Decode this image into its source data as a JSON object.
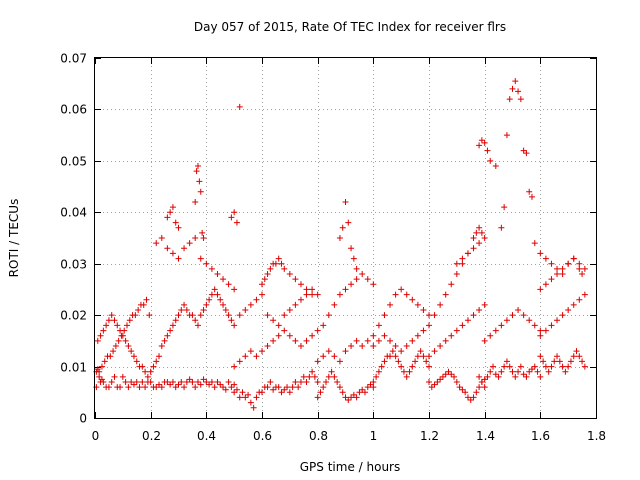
{
  "chart_data": {
    "type": "scatter",
    "title": "Day 057 of 2015, Rate Of TEC Index for receiver flrs",
    "xlabel": "GPS time / hours",
    "ylabel": "ROTI / TECUs",
    "xlim": [
      0,
      1.8
    ],
    "ylim": [
      0,
      0.07
    ],
    "xticks": [
      "0",
      "0.2",
      "0.4",
      "0.6",
      "0.8",
      "1",
      "1.2",
      "1.4",
      "1.6",
      "1.8"
    ],
    "yticks": [
      "0",
      "0.01",
      "0.02",
      "0.03",
      "0.04",
      "0.05",
      "0.06",
      "0.07"
    ],
    "grid": true,
    "marker": "+",
    "color": "#dd0000",
    "series": [
      {
        "x": [
          0.005,
          0.01,
          0.015,
          0.02,
          0.025,
          0.03,
          0.04,
          0.05,
          0.06,
          0.07,
          0.08,
          0.09,
          0.1,
          0.11,
          0.12,
          0.13,
          0.14,
          0.15,
          0.16,
          0.17,
          0.18,
          0.19,
          0.005,
          0.015,
          0.025,
          0.035,
          0.045,
          0.055,
          0.065,
          0.075,
          0.085,
          0.095,
          0.105,
          0.115,
          0.125,
          0.135,
          0.145,
          0.155,
          0.165,
          0.175,
          0.185,
          0.195,
          0.01,
          0.02,
          0.03,
          0.04,
          0.05,
          0.06,
          0.07,
          0.08,
          0.09,
          0.1,
          0.11,
          0.12,
          0.13,
          0.14,
          0.15,
          0.16,
          0.17,
          0.18,
          0.19,
          0.2,
          0.2,
          0.21,
          0.22,
          0.23,
          0.24,
          0.25,
          0.26,
          0.27,
          0.28,
          0.29,
          0.3,
          0.31,
          0.32,
          0.33,
          0.34,
          0.35,
          0.36,
          0.37,
          0.38,
          0.39,
          0.4,
          0.41,
          0.42,
          0.43,
          0.44,
          0.45,
          0.46,
          0.47,
          0.48,
          0.49,
          0.5,
          0.21,
          0.22,
          0.23,
          0.24,
          0.25,
          0.26,
          0.27,
          0.28,
          0.29,
          0.3,
          0.31,
          0.32,
          0.33,
          0.34,
          0.35,
          0.36,
          0.37,
          0.38,
          0.39,
          0.4,
          0.41,
          0.42,
          0.43,
          0.44,
          0.45,
          0.46,
          0.47,
          0.48,
          0.49,
          0.5,
          0.22,
          0.24,
          0.26,
          0.28,
          0.3,
          0.32,
          0.34,
          0.36,
          0.38,
          0.4,
          0.42,
          0.44,
          0.46,
          0.48,
          0.5,
          0.26,
          0.27,
          0.28,
          0.29,
          0.3,
          0.36,
          0.365,
          0.37,
          0.375,
          0.38,
          0.385,
          0.39,
          0.49,
          0.5,
          0.52,
          0.51,
          0.5,
          0.51,
          0.52,
          0.53,
          0.54,
          0.55,
          0.56,
          0.57,
          0.58,
          0.59,
          0.6,
          0.61,
          0.62,
          0.63,
          0.64,
          0.65,
          0.66,
          0.67,
          0.68,
          0.69,
          0.7,
          0.71,
          0.72,
          0.73,
          0.74,
          0.75,
          0.76,
          0.77,
          0.78,
          0.79,
          0.8,
          0.5,
          0.52,
          0.54,
          0.56,
          0.58,
          0.6,
          0.62,
          0.64,
          0.66,
          0.68,
          0.7,
          0.72,
          0.74,
          0.76,
          0.78,
          0.8,
          0.52,
          0.54,
          0.56,
          0.58,
          0.6,
          0.62,
          0.64,
          0.66,
          0.68,
          0.7,
          0.72,
          0.74,
          0.76,
          0.78,
          0.8,
          0.6,
          0.61,
          0.62,
          0.63,
          0.64,
          0.65,
          0.66,
          0.67,
          0.68,
          0.7,
          0.72,
          0.74,
          0.76,
          0.78,
          0.8,
          0.81,
          0.82,
          0.83,
          0.84,
          0.85,
          0.86,
          0.87,
          0.88,
          0.89,
          0.9,
          0.91,
          0.92,
          0.93,
          0.94,
          0.95,
          0.96,
          0.97,
          0.98,
          0.99,
          1.0,
          0.8,
          0.82,
          0.84,
          0.86,
          0.88,
          0.9,
          0.92,
          0.94,
          0.96,
          0.98,
          1.0,
          0.82,
          0.84,
          0.86,
          0.88,
          0.9,
          0.92,
          0.94,
          0.96,
          0.98,
          1.0,
          0.88,
          0.89,
          0.9,
          0.91,
          0.92,
          0.93,
          0.94,
          1.0,
          1.01,
          1.02,
          1.03,
          1.04,
          1.05,
          1.06,
          1.07,
          1.08,
          1.09,
          1.1,
          1.11,
          1.12,
          1.13,
          1.14,
          1.15,
          1.16,
          1.17,
          1.18,
          1.19,
          1.2,
          1.0,
          1.02,
          1.04,
          1.06,
          1.08,
          1.1,
          1.12,
          1.14,
          1.16,
          1.18,
          1.2,
          1.02,
          1.04,
          1.06,
          1.08,
          1.1,
          1.12,
          1.14,
          1.16,
          1.18,
          1.2,
          1.2,
          1.21,
          1.22,
          1.23,
          1.24,
          1.25,
          1.26,
          1.27,
          1.28,
          1.29,
          1.3,
          1.31,
          1.32,
          1.33,
          1.34,
          1.35,
          1.36,
          1.37,
          1.38,
          1.39,
          1.4,
          1.2,
          1.22,
          1.24,
          1.26,
          1.28,
          1.3,
          1.32,
          1.34,
          1.36,
          1.38,
          1.4,
          1.22,
          1.24,
          1.26,
          1.28,
          1.3,
          1.32,
          1.34,
          1.36,
          1.38,
          1.4,
          1.3,
          1.32,
          1.34,
          1.36,
          1.37,
          1.38,
          1.39,
          1.38,
          1.39,
          1.4,
          1.41,
          1.42,
          1.43,
          1.44,
          1.45,
          1.46,
          1.47,
          1.48,
          1.49,
          1.5,
          1.51,
          1.52,
          1.53,
          1.54,
          1.55,
          1.56,
          1.57,
          1.58,
          1.59,
          1.6,
          1.4,
          1.42,
          1.44,
          1.46,
          1.48,
          1.5,
          1.52,
          1.54,
          1.56,
          1.58,
          1.6,
          1.38,
          1.39,
          1.4,
          1.41,
          1.42,
          1.44,
          1.46,
          1.47,
          1.48,
          1.49,
          1.5,
          1.51,
          1.52,
          1.53,
          1.54,
          1.55,
          1.56,
          1.57,
          1.6,
          1.61,
          1.62,
          1.63,
          1.64,
          1.65,
          1.66,
          1.67,
          1.68,
          1.69,
          1.7,
          1.71,
          1.72,
          1.73,
          1.74,
          1.75,
          1.76,
          1.6,
          1.62,
          1.64,
          1.66,
          1.68,
          1.7,
          1.72,
          1.74,
          1.76,
          1.6,
          1.62,
          1.64,
          1.66,
          1.68,
          1.7,
          1.72,
          1.74,
          1.76,
          1.58,
          1.6,
          1.62,
          1.64,
          1.66,
          1.68,
          1.7,
          1.72,
          1.74,
          1.75
        ],
        "y": [
          0.009,
          0.0095,
          0.008,
          0.007,
          0.0075,
          0.007,
          0.006,
          0.006,
          0.007,
          0.008,
          0.006,
          0.006,
          0.008,
          0.007,
          0.006,
          0.007,
          0.0065,
          0.007,
          0.006,
          0.007,
          0.006,
          0.007,
          0.006,
          0.009,
          0.01,
          0.011,
          0.012,
          0.012,
          0.013,
          0.014,
          0.015,
          0.016,
          0.017,
          0.018,
          0.019,
          0.02,
          0.02,
          0.021,
          0.022,
          0.022,
          0.023,
          0.02,
          0.015,
          0.016,
          0.017,
          0.018,
          0.019,
          0.02,
          0.019,
          0.018,
          0.017,
          0.016,
          0.015,
          0.014,
          0.013,
          0.012,
          0.011,
          0.01,
          0.01,
          0.009,
          0.008,
          0.009,
          0.007,
          0.006,
          0.006,
          0.0065,
          0.006,
          0.007,
          0.007,
          0.0065,
          0.007,
          0.006,
          0.0065,
          0.007,
          0.006,
          0.007,
          0.0075,
          0.007,
          0.006,
          0.007,
          0.0065,
          0.0075,
          0.007,
          0.0065,
          0.007,
          0.006,
          0.007,
          0.0065,
          0.006,
          0.0055,
          0.007,
          0.006,
          0.0065,
          0.01,
          0.011,
          0.012,
          0.014,
          0.015,
          0.016,
          0.017,
          0.018,
          0.019,
          0.02,
          0.021,
          0.022,
          0.021,
          0.02,
          0.02,
          0.019,
          0.018,
          0.02,
          0.021,
          0.022,
          0.023,
          0.024,
          0.025,
          0.024,
          0.023,
          0.022,
          0.021,
          0.02,
          0.019,
          0.018,
          0.034,
          0.035,
          0.033,
          0.032,
          0.031,
          0.033,
          0.034,
          0.035,
          0.031,
          0.03,
          0.029,
          0.028,
          0.027,
          0.026,
          0.025,
          0.039,
          0.04,
          0.041,
          0.038,
          0.037,
          0.042,
          0.048,
          0.049,
          0.046,
          0.044,
          0.036,
          0.035,
          0.039,
          0.04,
          0.0605,
          0.038,
          0.005,
          0.0055,
          0.004,
          0.005,
          0.004,
          0.0045,
          0.003,
          0.002,
          0.004,
          0.005,
          0.005,
          0.006,
          0.006,
          0.007,
          0.0055,
          0.006,
          0.006,
          0.005,
          0.0055,
          0.006,
          0.005,
          0.006,
          0.007,
          0.006,
          0.007,
          0.008,
          0.007,
          0.008,
          0.009,
          0.008,
          0.007,
          0.01,
          0.011,
          0.012,
          0.013,
          0.012,
          0.013,
          0.014,
          0.015,
          0.016,
          0.017,
          0.016,
          0.015,
          0.014,
          0.015,
          0.016,
          0.017,
          0.02,
          0.021,
          0.022,
          0.023,
          0.024,
          0.02,
          0.019,
          0.018,
          0.02,
          0.021,
          0.022,
          0.023,
          0.024,
          0.025,
          0.024,
          0.026,
          0.027,
          0.028,
          0.029,
          0.03,
          0.03,
          0.031,
          0.03,
          0.029,
          0.028,
          0.027,
          0.026,
          0.025,
          0.024,
          0.004,
          0.005,
          0.006,
          0.007,
          0.008,
          0.009,
          0.008,
          0.007,
          0.006,
          0.005,
          0.004,
          0.0035,
          0.004,
          0.0045,
          0.004,
          0.005,
          0.0055,
          0.005,
          0.006,
          0.0065,
          0.006,
          0.011,
          0.012,
          0.013,
          0.012,
          0.011,
          0.013,
          0.014,
          0.015,
          0.014,
          0.015,
          0.016,
          0.018,
          0.02,
          0.022,
          0.024,
          0.025,
          0.026,
          0.027,
          0.028,
          0.027,
          0.026,
          0.035,
          0.037,
          0.042,
          0.038,
          0.033,
          0.031,
          0.029,
          0.007,
          0.008,
          0.009,
          0.01,
          0.011,
          0.012,
          0.012,
          0.013,
          0.012,
          0.011,
          0.01,
          0.009,
          0.008,
          0.009,
          0.01,
          0.011,
          0.012,
          0.013,
          0.012,
          0.011,
          0.01,
          0.014,
          0.015,
          0.016,
          0.015,
          0.014,
          0.013,
          0.014,
          0.015,
          0.016,
          0.017,
          0.018,
          0.018,
          0.02,
          0.022,
          0.024,
          0.025,
          0.024,
          0.023,
          0.022,
          0.021,
          0.02,
          0.007,
          0.006,
          0.0065,
          0.007,
          0.0075,
          0.008,
          0.0085,
          0.009,
          0.0085,
          0.008,
          0.007,
          0.006,
          0.0055,
          0.005,
          0.004,
          0.0035,
          0.004,
          0.005,
          0.006,
          0.007,
          0.006,
          0.012,
          0.013,
          0.014,
          0.015,
          0.016,
          0.017,
          0.018,
          0.019,
          0.02,
          0.021,
          0.022,
          0.02,
          0.022,
          0.024,
          0.026,
          0.028,
          0.03,
          0.032,
          0.033,
          0.034,
          0.035,
          0.03,
          0.031,
          0.032,
          0.035,
          0.036,
          0.037,
          0.036,
          0.008,
          0.007,
          0.0075,
          0.008,
          0.009,
          0.01,
          0.0085,
          0.008,
          0.009,
          0.01,
          0.011,
          0.01,
          0.009,
          0.008,
          0.009,
          0.01,
          0.0085,
          0.008,
          0.009,
          0.0095,
          0.01,
          0.009,
          0.008,
          0.015,
          0.016,
          0.017,
          0.018,
          0.019,
          0.02,
          0.021,
          0.02,
          0.019,
          0.018,
          0.017,
          0.053,
          0.054,
          0.0535,
          0.052,
          0.05,
          0.049,
          0.037,
          0.041,
          0.055,
          0.062,
          0.064,
          0.0655,
          0.0635,
          0.062,
          0.052,
          0.0515,
          0.044,
          0.043,
          0.012,
          0.011,
          0.01,
          0.009,
          0.01,
          0.011,
          0.012,
          0.011,
          0.01,
          0.009,
          0.01,
          0.011,
          0.012,
          0.013,
          0.012,
          0.011,
          0.01,
          0.016,
          0.017,
          0.018,
          0.019,
          0.02,
          0.021,
          0.022,
          0.023,
          0.024,
          0.025,
          0.026,
          0.027,
          0.028,
          0.029,
          0.03,
          0.031,
          0.03,
          0.029,
          0.034,
          0.032,
          0.031,
          0.03,
          0.029,
          0.028,
          0.03,
          0.031,
          0.029,
          0.028
        ]
      }
    ]
  }
}
